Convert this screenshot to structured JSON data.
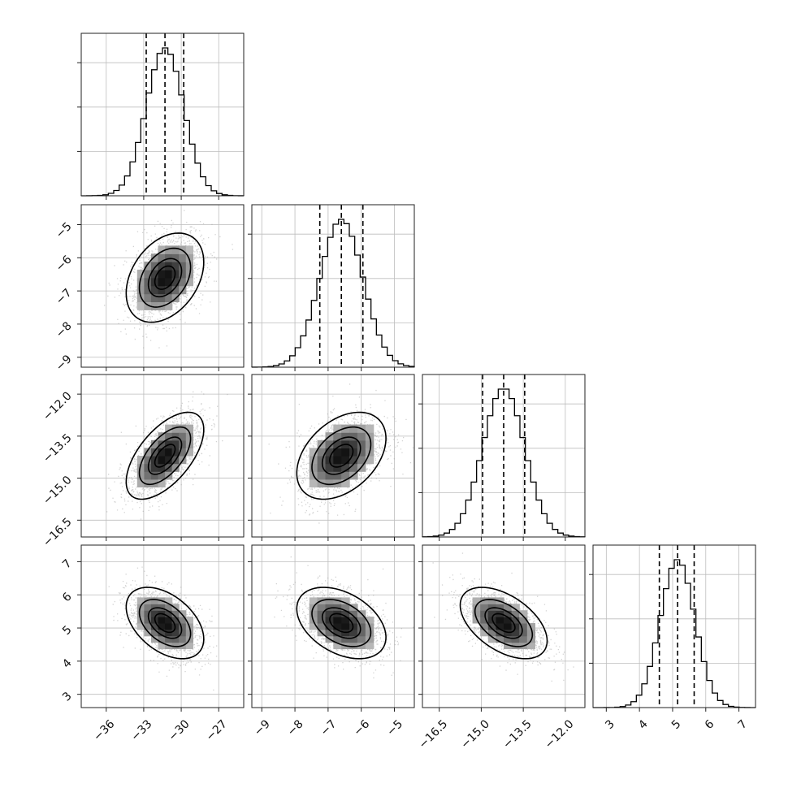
{
  "chart_data": {
    "type": "corner",
    "grid": true,
    "parameters": [
      {
        "axis_label": "",
        "median": -31.3,
        "q16": -32.8,
        "q84": -29.8,
        "sigma": 1.5,
        "range": [
          -38.0,
          -25.0
        ],
        "ticks": [
          -36,
          -33,
          -30,
          -27
        ],
        "tick_labels": [
          "−36",
          "−33",
          "−30",
          "−27"
        ]
      },
      {
        "axis_label": "",
        "median": -6.6,
        "q16": -7.25,
        "q84": -5.95,
        "sigma": 0.65,
        "range": [
          -9.3,
          -4.4
        ],
        "ticks": [
          -9,
          -8,
          -7,
          -6,
          -5
        ],
        "tick_labels": [
          "−9",
          "−8",
          "−7",
          "−6",
          "−5"
        ]
      },
      {
        "axis_label": "",
        "median": -14.2,
        "q16": -14.95,
        "q84": -13.45,
        "sigma": 0.75,
        "range": [
          -17.1,
          -11.3
        ],
        "ticks": [
          -16.5,
          -15.0,
          -13.5,
          -12.0
        ],
        "tick_labels": [
          "−16.5",
          "−15.0",
          "−13.5",
          "−12.0"
        ]
      },
      {
        "axis_label": "",
        "median": 5.15,
        "q16": 4.6,
        "q84": 5.65,
        "sigma": 0.52,
        "range": [
          2.6,
          7.5
        ],
        "ticks": [
          3,
          4,
          5,
          6,
          7
        ],
        "tick_labels": [
          "3",
          "4",
          "5",
          "6",
          "7"
        ]
      }
    ],
    "correlations": [
      {
        "i": 1,
        "j": 0,
        "rho": 0.35
      },
      {
        "i": 2,
        "j": 0,
        "rho": 0.6
      },
      {
        "i": 2,
        "j": 1,
        "rho": 0.4
      },
      {
        "i": 3,
        "j": 0,
        "rho": -0.45
      },
      {
        "i": 3,
        "j": 1,
        "rho": -0.4
      },
      {
        "i": 3,
        "j": 2,
        "rho": -0.5
      }
    ],
    "contour_levels_sigma": [
      0.5,
      1.0,
      1.5,
      2.0
    ],
    "colors": {
      "line": "#000000",
      "points": "#9e9e9e",
      "grid": "#bdbdbd",
      "frame": "#222222"
    }
  }
}
